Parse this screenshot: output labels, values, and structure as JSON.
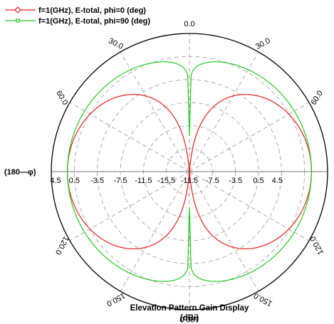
{
  "chart_data": {
    "type": "polar",
    "title": "Elevation Pattern Gain Display",
    "unit_label": "(dBi)",
    "left_label": "(180—φ)",
    "radial_min": -19.5,
    "radial_max": 4.5,
    "radial_step": 4,
    "radial_tick_labels": [
      "4.5",
      "0.5",
      "-3.5",
      "-7.5",
      "-11.5",
      "-15.5",
      "-11.5",
      "-7.5",
      "-3.5",
      "0.5",
      "4.5"
    ],
    "angle_labels": [
      "0.0",
      "30.0",
      "60.0",
      "30.0",
      "60.0",
      "120.0",
      "150.0",
      "180.0",
      "150.0",
      "120.0"
    ],
    "grid": true,
    "legend_position": "top-left",
    "series": [
      {
        "name": "f=1(GHz), E-total, phi=0 (deg)",
        "color": "#e8201c",
        "marker": "diamond",
        "pattern": "sin-squared",
        "peak_gain_dbi": 1.7
      },
      {
        "name": "f=1(GHz), E-total, phi=90 (deg)",
        "color": "#22c922",
        "marker": "square",
        "pattern": "omni-with-nulls",
        "peak_gain_dbi": 1.7
      }
    ]
  }
}
